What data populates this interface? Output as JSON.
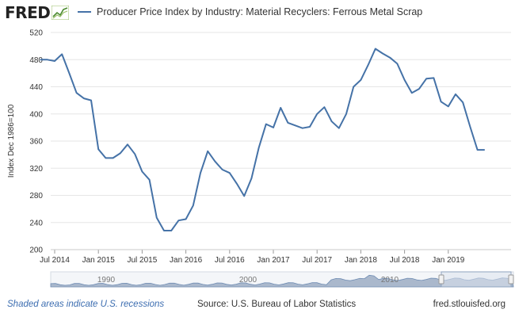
{
  "header": {
    "logo_text": "FRED",
    "legend_label": "Producer Price Index by Industry: Material Recyclers: Ferrous Metal Scrap"
  },
  "footer": {
    "recession_note": "Shaded areas indicate U.S. recessions",
    "source": "Source: U.S. Bureau of Labor Statistics",
    "url": "fred.stlouisfed.org"
  },
  "navigator": {
    "labels": [
      "1990",
      "2000",
      "2010"
    ]
  },
  "colors": {
    "line": "#4572a7",
    "grid": "#e6e6e6",
    "navigator_fill": "#aab8cc",
    "navigator_window": "#dde4ee"
  },
  "chart_data": {
    "type": "line",
    "title": "",
    "xlabel": "",
    "ylabel": "Index Dec 1986=100",
    "ylim": [
      200,
      520
    ],
    "yticks": [
      200,
      240,
      280,
      320,
      360,
      400,
      440,
      480,
      520
    ],
    "x_ticks": [
      "Jul 2014",
      "Jan 2015",
      "Jul 2015",
      "Jan 2016",
      "Jul 2016",
      "Jan 2017",
      "Jul 2017",
      "Jan 2018",
      "Jul 2018",
      "Jan 2019"
    ],
    "grid": true,
    "series": [
      {
        "name": "Producer Price Index by Industry: Material Recyclers: Ferrous Metal Scrap",
        "x": [
          "2014-05",
          "2014-06",
          "2014-07",
          "2014-08",
          "2014-09",
          "2014-10",
          "2014-11",
          "2014-12",
          "2015-01",
          "2015-02",
          "2015-03",
          "2015-04",
          "2015-05",
          "2015-06",
          "2015-07",
          "2015-08",
          "2015-09",
          "2015-10",
          "2015-11",
          "2015-12",
          "2016-01",
          "2016-02",
          "2016-03",
          "2016-04",
          "2016-05",
          "2016-06",
          "2016-07",
          "2016-08",
          "2016-09",
          "2016-10",
          "2016-11",
          "2016-12",
          "2017-01",
          "2017-02",
          "2017-03",
          "2017-04",
          "2017-05",
          "2017-06",
          "2017-07",
          "2017-08",
          "2017-09",
          "2017-10",
          "2017-11",
          "2017-12",
          "2018-01",
          "2018-02",
          "2018-03",
          "2018-04",
          "2018-05",
          "2018-06",
          "2018-07",
          "2018-08",
          "2018-09",
          "2018-10",
          "2018-11",
          "2018-12",
          "2019-01",
          "2019-02",
          "2019-03",
          "2019-04",
          "2019-05",
          "2019-06"
        ],
        "values": [
          480,
          480,
          478,
          488,
          460,
          431,
          423,
          420,
          348,
          335,
          335,
          342,
          355,
          341,
          315,
          303,
          247,
          228,
          228,
          243,
          245,
          265,
          313,
          345,
          330,
          318,
          313,
          297,
          279,
          305,
          350,
          385,
          380,
          409,
          387,
          383,
          379,
          381,
          400,
          410,
          389,
          379,
          400,
          440,
          450,
          472,
          496,
          489,
          483,
          474,
          450,
          431,
          437,
          452,
          453,
          418,
          411,
          429,
          417,
          381,
          347,
          347
        ]
      }
    ]
  }
}
